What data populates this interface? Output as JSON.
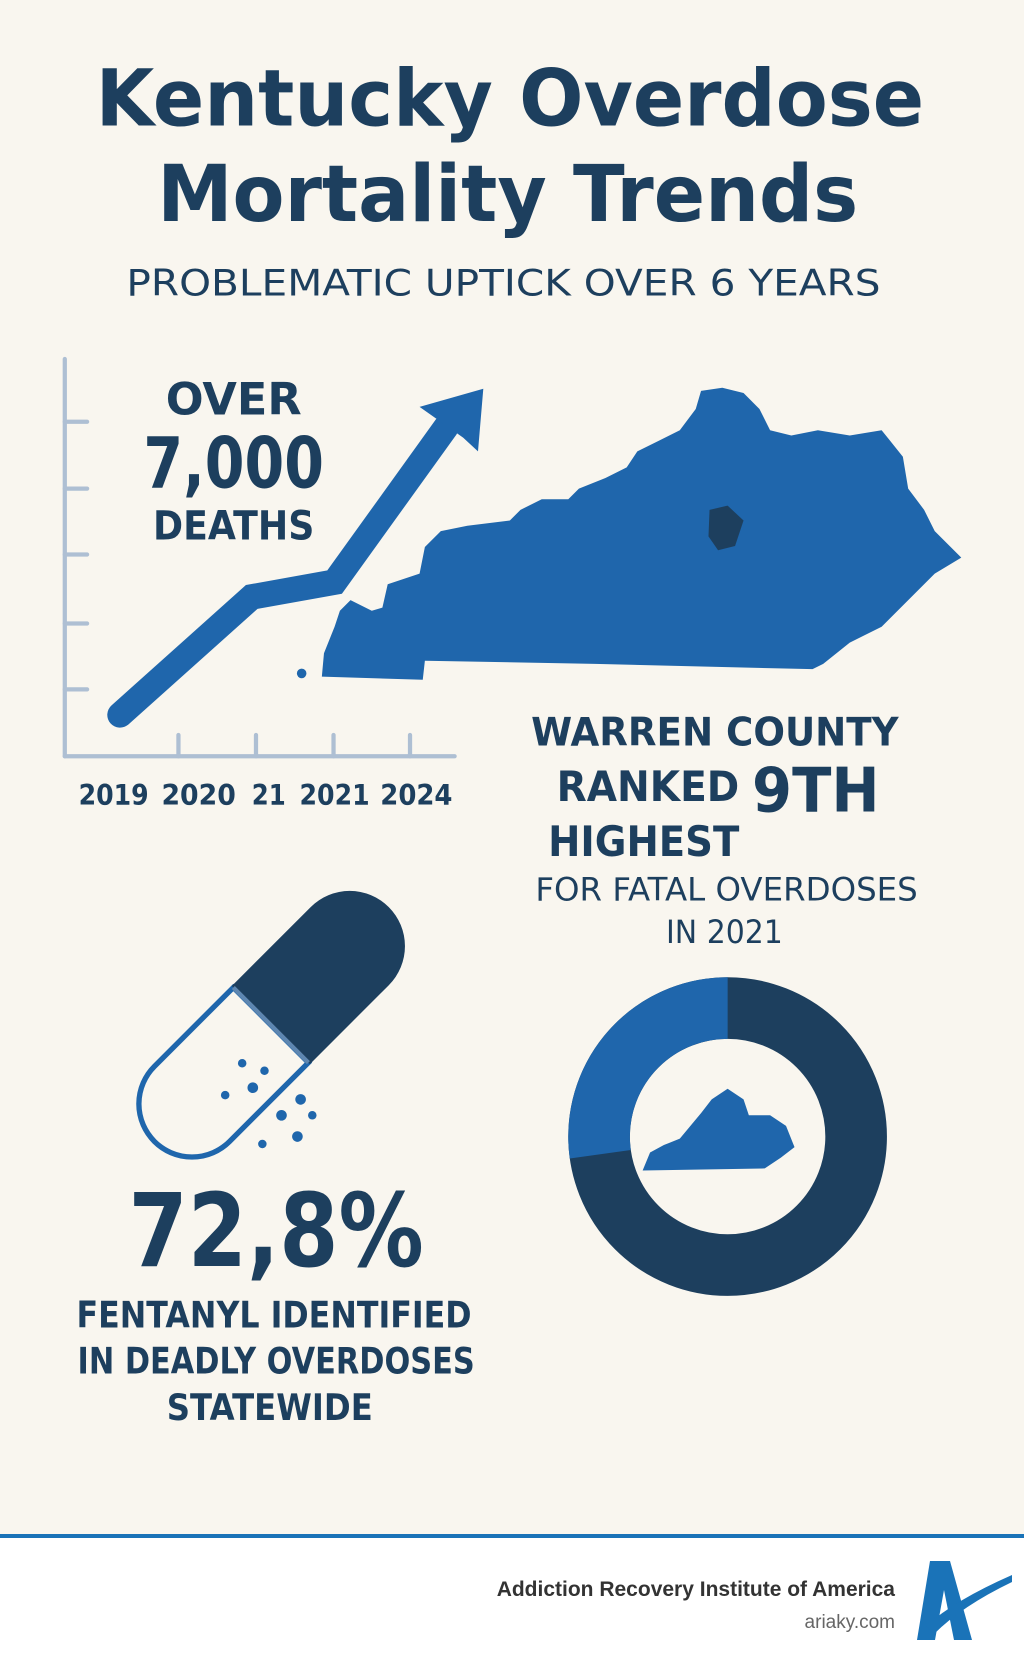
{
  "title": {
    "line1": "Kentucky Overdose",
    "line2": "Mortality Trends"
  },
  "subtitle": "PROBLEMATIC UPTICK OVER 6 YEARS",
  "trend": {
    "over": "OVER",
    "count": "7,000",
    "deaths": "DEATHS",
    "x_labels": [
      "2019",
      "2020",
      "21",
      "2021",
      "2024"
    ]
  },
  "warren": {
    "line1": "WARREN COUNTY",
    "line2": "RANKED",
    "rank": "9TH",
    "line3": "HIGHEST",
    "line4": "FOR FATAL OVERDOSES",
    "line5": "IN 2021"
  },
  "fentanyl": {
    "percent": "72,8%",
    "line1": "FENTANYL IDENTIFIED",
    "line2": "IN DEADLY OVERDOSES",
    "line3": "STATEWIDE"
  },
  "donut": {
    "dark_share_percent": 72.8
  },
  "footer": {
    "org": "Addiction Recovery Institute of America",
    "site": "ariaky.com",
    "logo_letter": "A"
  },
  "colors": {
    "navy": "#1d3f5e",
    "blue": "#1f66ac",
    "background": "#f9f6ef",
    "accent_line": "#1a73b8"
  }
}
